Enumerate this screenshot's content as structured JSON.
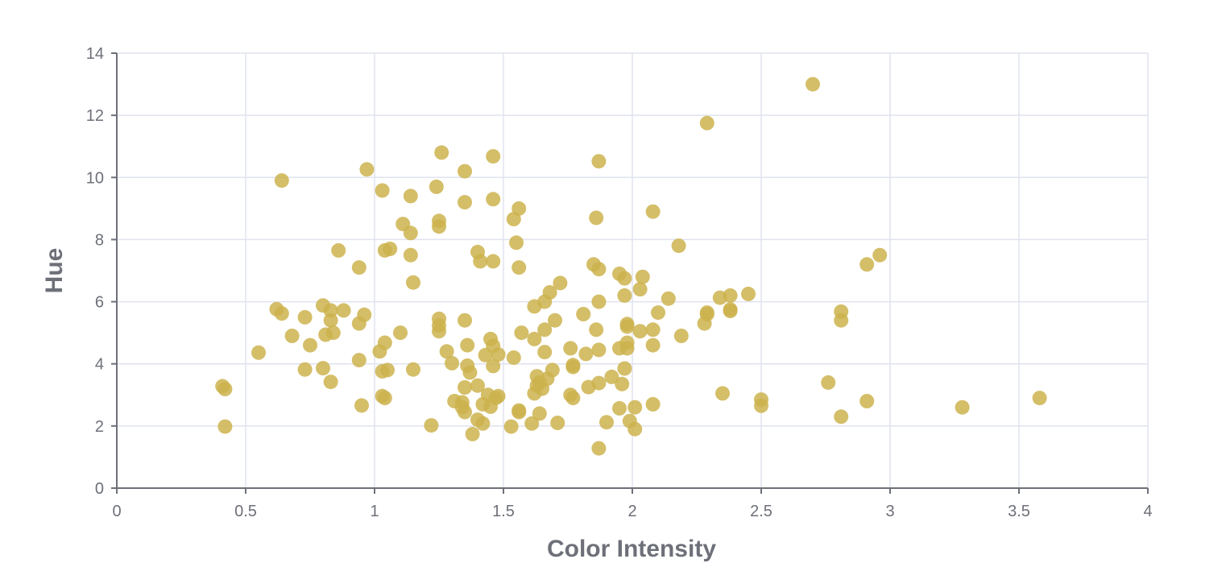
{
  "chart_data": {
    "type": "scatter",
    "title": "",
    "xlabel": "Color Intensity",
    "ylabel": "Hue",
    "xlim": [
      0,
      4
    ],
    "ylim": [
      0,
      14
    ],
    "x_ticks": [
      "0",
      "0.5",
      "1",
      "1.5",
      "2",
      "2.5",
      "3",
      "3.5",
      "4"
    ],
    "y_ticks": [
      "0",
      "2",
      "4",
      "6",
      "8",
      "10",
      "12",
      "14"
    ],
    "grid": true,
    "legend": "none",
    "colors": {
      "point": "#cdb34e",
      "grid": "#e0e3ef",
      "axis": "#6e7079",
      "text": "#6e7079"
    },
    "series": [
      {
        "points": [
          [
            0.41,
            3.28
          ],
          [
            0.42,
            3.19
          ],
          [
            0.42,
            1.98
          ],
          [
            0.55,
            4.36
          ],
          [
            0.62,
            5.76
          ],
          [
            0.64,
            5.62
          ],
          [
            0.64,
            9.9
          ],
          [
            0.68,
            4.9
          ],
          [
            0.73,
            5.5
          ],
          [
            0.73,
            3.82
          ],
          [
            0.75,
            4.6
          ],
          [
            0.8,
            5.88
          ],
          [
            0.8,
            3.86
          ],
          [
            0.81,
            4.94
          ],
          [
            0.83,
            5.72
          ],
          [
            0.83,
            5.4
          ],
          [
            0.83,
            3.42
          ],
          [
            0.84,
            5.0
          ],
          [
            0.86,
            7.65
          ],
          [
            0.88,
            5.72
          ],
          [
            0.94,
            7.1
          ],
          [
            0.94,
            5.3
          ],
          [
            0.94,
            4.12
          ],
          [
            0.95,
            2.66
          ],
          [
            0.96,
            5.58
          ],
          [
            0.97,
            10.26
          ],
          [
            1.02,
            4.4
          ],
          [
            1.03,
            9.58
          ],
          [
            1.03,
            3.76
          ],
          [
            1.03,
            2.96
          ],
          [
            1.04,
            7.65
          ],
          [
            1.04,
            4.68
          ],
          [
            1.04,
            2.9
          ],
          [
            1.05,
            3.8
          ],
          [
            1.06,
            7.7
          ],
          [
            1.1,
            5.0
          ],
          [
            1.11,
            8.5
          ],
          [
            1.14,
            9.4
          ],
          [
            1.14,
            8.21
          ],
          [
            1.14,
            7.5
          ],
          [
            1.15,
            6.62
          ],
          [
            1.15,
            3.82
          ],
          [
            1.22,
            2.02
          ],
          [
            1.24,
            9.7
          ],
          [
            1.25,
            8.6
          ],
          [
            1.25,
            8.42
          ],
          [
            1.25,
            5.45
          ],
          [
            1.25,
            5.24
          ],
          [
            1.25,
            5.05
          ],
          [
            1.26,
            10.8
          ],
          [
            1.28,
            4.4
          ],
          [
            1.3,
            4.02
          ],
          [
            1.31,
            2.8
          ],
          [
            1.34,
            2.76
          ],
          [
            1.34,
            2.6
          ],
          [
            1.35,
            10.2
          ],
          [
            1.35,
            9.2
          ],
          [
            1.35,
            5.4
          ],
          [
            1.35,
            3.24
          ],
          [
            1.35,
            2.45
          ],
          [
            1.36,
            4.6
          ],
          [
            1.36,
            3.94
          ],
          [
            1.37,
            3.72
          ],
          [
            1.38,
            1.74
          ],
          [
            1.4,
            7.6
          ],
          [
            1.4,
            3.3
          ],
          [
            1.4,
            2.2
          ],
          [
            1.41,
            7.3
          ],
          [
            1.42,
            2.7
          ],
          [
            1.42,
            2.08
          ],
          [
            1.43,
            4.28
          ],
          [
            1.44,
            3.0
          ],
          [
            1.45,
            4.8
          ],
          [
            1.45,
            2.62
          ],
          [
            1.46,
            10.68
          ],
          [
            1.46,
            9.3
          ],
          [
            1.46,
            7.3
          ],
          [
            1.46,
            4.58
          ],
          [
            1.46,
            3.93
          ],
          [
            1.47,
            2.9
          ],
          [
            1.48,
            4.3
          ],
          [
            1.48,
            2.96
          ],
          [
            1.53,
            1.98
          ],
          [
            1.54,
            4.2
          ],
          [
            1.54,
            8.66
          ],
          [
            1.55,
            7.9
          ],
          [
            1.56,
            9.0
          ],
          [
            1.56,
            7.1
          ],
          [
            1.56,
            2.5
          ],
          [
            1.56,
            2.45
          ],
          [
            1.57,
            5.0
          ],
          [
            1.61,
            2.08
          ],
          [
            1.62,
            5.85
          ],
          [
            1.62,
            4.8
          ],
          [
            1.62,
            3.05
          ],
          [
            1.63,
            3.6
          ],
          [
            1.63,
            3.3
          ],
          [
            1.64,
            3.4
          ],
          [
            1.64,
            2.4
          ],
          [
            1.65,
            3.2
          ],
          [
            1.66,
            6.0
          ],
          [
            1.66,
            5.1
          ],
          [
            1.66,
            4.38
          ],
          [
            1.67,
            3.52
          ],
          [
            1.68,
            6.3
          ],
          [
            1.69,
            3.8
          ],
          [
            1.7,
            5.4
          ],
          [
            1.71,
            2.1
          ],
          [
            1.72,
            6.6
          ],
          [
            1.76,
            4.5
          ],
          [
            1.76,
            3.0
          ],
          [
            1.77,
            3.96
          ],
          [
            1.77,
            3.9
          ],
          [
            1.77,
            2.9
          ],
          [
            1.81,
            5.6
          ],
          [
            1.82,
            4.32
          ],
          [
            1.83,
            3.25
          ],
          [
            1.85,
            7.2
          ],
          [
            1.86,
            8.7
          ],
          [
            1.86,
            5.1
          ],
          [
            1.87,
            10.52
          ],
          [
            1.87,
            7.05
          ],
          [
            1.87,
            6.0
          ],
          [
            1.87,
            4.45
          ],
          [
            1.87,
            3.38
          ],
          [
            1.87,
            1.28
          ],
          [
            1.9,
            2.12
          ],
          [
            1.92,
            3.58
          ],
          [
            1.95,
            6.9
          ],
          [
            1.95,
            4.5
          ],
          [
            1.95,
            2.57
          ],
          [
            1.96,
            3.35
          ],
          [
            1.97,
            6.75
          ],
          [
            1.97,
            6.2
          ],
          [
            1.97,
            3.85
          ],
          [
            1.98,
            5.28
          ],
          [
            1.98,
            5.2
          ],
          [
            1.98,
            4.68
          ],
          [
            1.98,
            4.5
          ],
          [
            1.99,
            2.16
          ],
          [
            2.01,
            2.6
          ],
          [
            2.01,
            1.9
          ],
          [
            2.03,
            6.4
          ],
          [
            2.03,
            5.05
          ],
          [
            2.04,
            6.8
          ],
          [
            2.08,
            8.9
          ],
          [
            2.08,
            5.1
          ],
          [
            2.08,
            4.6
          ],
          [
            2.08,
            2.7
          ],
          [
            2.1,
            5.65
          ],
          [
            2.14,
            6.1
          ],
          [
            2.18,
            7.8
          ],
          [
            2.19,
            4.9
          ],
          [
            2.28,
            5.3
          ],
          [
            2.29,
            5.65
          ],
          [
            2.29,
            5.6
          ],
          [
            2.29,
            11.75
          ],
          [
            2.34,
            6.13
          ],
          [
            2.35,
            3.05
          ],
          [
            2.38,
            6.2
          ],
          [
            2.38,
            5.75
          ],
          [
            2.38,
            5.7
          ],
          [
            2.45,
            6.25
          ],
          [
            2.5,
            2.65
          ],
          [
            2.5,
            2.85
          ],
          [
            2.7,
            13.0
          ],
          [
            2.76,
            3.4
          ],
          [
            2.81,
            5.68
          ],
          [
            2.81,
            5.4
          ],
          [
            2.81,
            2.3
          ],
          [
            2.91,
            7.2
          ],
          [
            2.91,
            2.8
          ],
          [
            2.96,
            7.5
          ],
          [
            3.28,
            2.6
          ],
          [
            3.58,
            2.9
          ]
        ]
      }
    ]
  }
}
